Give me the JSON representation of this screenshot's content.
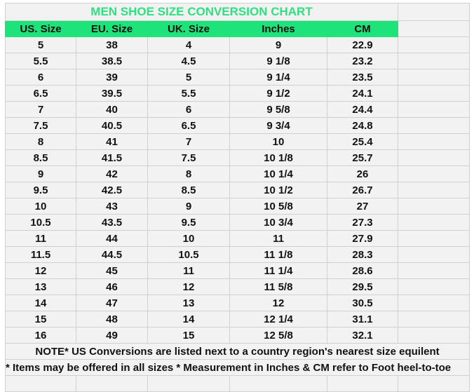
{
  "title": "MEN SHOE SIZE CONVERSION CHART",
  "headers": [
    "US. Size",
    "EU. Size",
    "UK. Size",
    "Inches",
    "CM"
  ],
  "rows": [
    [
      "5",
      "38",
      "4",
      "9",
      "22.9"
    ],
    [
      "5.5",
      "38.5",
      "4.5",
      "9 1/8",
      "23.2"
    ],
    [
      "6",
      "39",
      "5",
      "9 1/4",
      "23.5"
    ],
    [
      "6.5",
      "39.5",
      "5.5",
      "9 1/2",
      "24.1"
    ],
    [
      "7",
      "40",
      "6",
      "9 5/8",
      "24.4"
    ],
    [
      "7.5",
      "40.5",
      "6.5",
      "9 3/4",
      "24.8"
    ],
    [
      "8",
      "41",
      "7",
      "10",
      "25.4"
    ],
    [
      "8.5",
      "41.5",
      "7.5",
      "10 1/8",
      "25.7"
    ],
    [
      "9",
      "42",
      "8",
      "10 1/4",
      "26"
    ],
    [
      "9.5",
      "42.5",
      "8.5",
      "10 1/2",
      "26.7"
    ],
    [
      "10",
      "43",
      "9",
      "10 5/8",
      "27"
    ],
    [
      "10.5",
      "43.5",
      "9.5",
      "10 3/4",
      "27.3"
    ],
    [
      "11",
      "44",
      "10",
      "11",
      "27.9"
    ],
    [
      "11.5",
      "44.5",
      "10.5",
      "11 1/8",
      "28.3"
    ],
    [
      "12",
      "45",
      "11",
      "11 1/4",
      "28.6"
    ],
    [
      "13",
      "46",
      "12",
      "11 5/8",
      "29.5"
    ],
    [
      "14",
      "47",
      "13",
      "12",
      "30.5"
    ],
    [
      "15",
      "48",
      "14",
      "12 1/4",
      "31.1"
    ],
    [
      "16",
      "49",
      "15",
      "12 5/8",
      "32.1"
    ]
  ],
  "note1": "NOTE* US Conversions are listed next to a country region's nearest size equilent",
  "note2": "* Items may be offered in all sizes * Measurement in Inches & CM refer to Foot heel-to-toe",
  "colors": {
    "header_bg": "#1ee27a",
    "title_text": "#2ee080",
    "cell_bg": "#f2f2f2"
  }
}
